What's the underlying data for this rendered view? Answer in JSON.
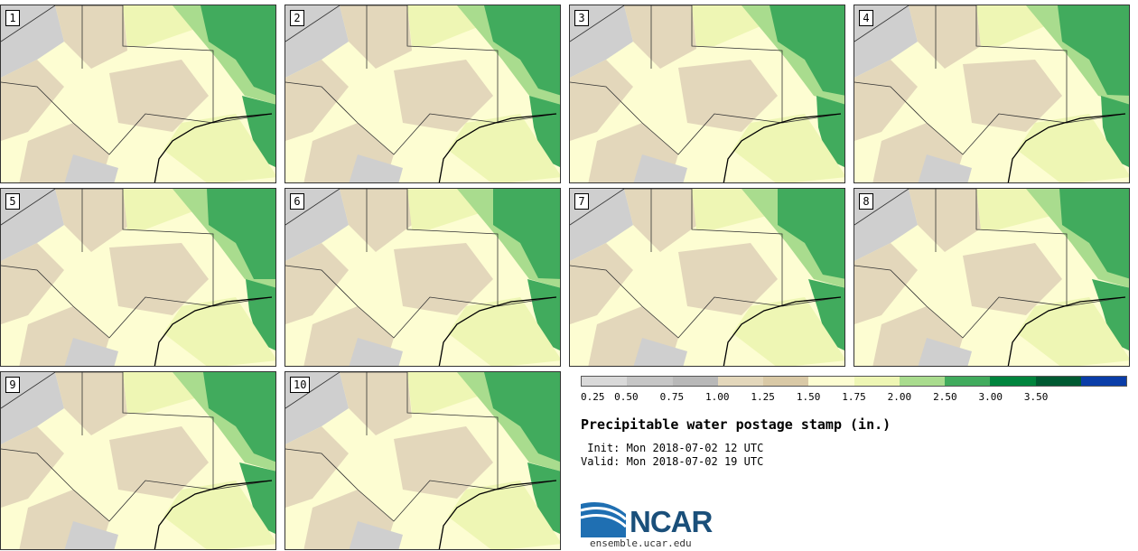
{
  "stamps": [
    {
      "label": "1"
    },
    {
      "label": "2"
    },
    {
      "label": "3"
    },
    {
      "label": "4"
    },
    {
      "label": "5"
    },
    {
      "label": "6"
    },
    {
      "label": "7"
    },
    {
      "label": "8"
    },
    {
      "label": "9"
    },
    {
      "label": "10"
    }
  ],
  "colorbar": {
    "colors": [
      "#d9d9d9",
      "#c6c6c6",
      "#b8b8b8",
      "#e3d7bb",
      "#d9c9a6",
      "#fdfdd2",
      "#eef6b4",
      "#a9dc8e",
      "#41ab5d",
      "#00843d",
      "#005a32",
      "#0a3da8"
    ],
    "labels": [
      "0.25",
      "0.50",
      "0.75",
      "1.00",
      "1.25",
      "1.50",
      "1.75",
      "2.00",
      "2.50",
      "3.00",
      "3.50"
    ]
  },
  "title": "Precipitable water postage stamp (in.)",
  "init_line": " Init: Mon 2018-07-02 12 UTC",
  "valid_line": "Valid: Mon 2018-07-02 19 UTC",
  "logo": {
    "text": "NCAR",
    "url": "ensemble.ucar.edu"
  },
  "map_colors": {
    "gray": "#cfcfcf",
    "tan": "#e3d7bb",
    "cream": "#fdfdd2",
    "light_green": "#eef6b4",
    "mid_green": "#a9dc8e",
    "green": "#41ab5d",
    "border": "#333333"
  }
}
